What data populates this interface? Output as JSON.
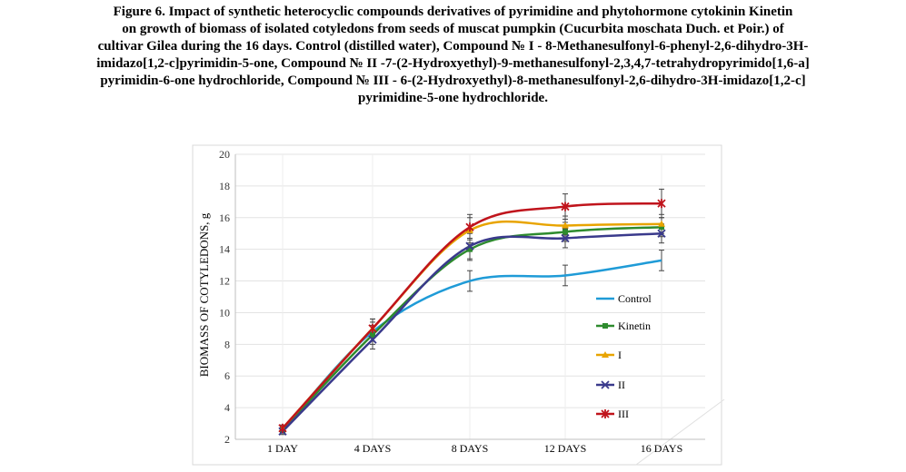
{
  "caption_lines": [
    "Figure 6. Impact of synthetic heterocyclic compounds derivatives of pyrimidine and phytohormone cytokinin Kinetin",
    "on growth of biomass of isolated cotyledons from seeds of muscat pumpkin (Cucurbita moschata Duch. et Poir.) of",
    "cultivar Gilea during the 16 days. Control (distilled water), Compound № I - 8-Methanesulfonyl-6-phenyl-2,6-dihydro-3H-",
    "imidazo[1,2-c]pyrimidin-5-one, Compound № II -7-(2-Hydroxyethyl)-9-methanesulfonyl-2,3,4,7-tetrahydropyrimido[1,6-a]",
    "pyrimidin-6-one hydrochloride, Compound № III - 6-(2-Hydroxyethyl)-8-methanesulfonyl-2,6-dihydro-3H-imidazo[1,2-c]",
    "pyrimidine-5-one hydrochloride."
  ],
  "chart_data": {
    "type": "line",
    "title": "",
    "xlabel": "",
    "ylabel": "BIOMASS OF COTYLEDONS, g",
    "categories": [
      "1 DAY",
      "4 DAYS",
      "8 DAYS",
      "12 DAYS",
      "16 DAYS"
    ],
    "ylim": [
      2,
      20
    ],
    "yticks": [
      2,
      4,
      6,
      8,
      10,
      12,
      14,
      16,
      18,
      20
    ],
    "grid": true,
    "legend_position": "right",
    "series": [
      {
        "name": "Control",
        "color": "#1f9bd7",
        "marker": "none",
        "values": [
          2.6,
          8.8,
          12.0,
          12.35,
          13.3
        ],
        "errors": [
          0.2,
          0.6,
          0.65,
          0.65,
          0.65
        ]
      },
      {
        "name": "Kinetin",
        "color": "#2e8b2e",
        "marker": "square",
        "values": [
          2.6,
          8.6,
          14.0,
          15.1,
          15.4
        ],
        "errors": [
          0.2,
          0.6,
          0.7,
          0.6,
          0.6
        ]
      },
      {
        "name": "I",
        "color": "#e8a400",
        "marker": "triangle",
        "values": [
          2.7,
          9.0,
          15.2,
          15.5,
          15.6
        ],
        "errors": [
          0.2,
          0.6,
          0.8,
          0.6,
          0.6
        ]
      },
      {
        "name": "II",
        "color": "#3a3a8c",
        "marker": "x",
        "values": [
          2.5,
          8.3,
          14.2,
          14.7,
          15.0
        ],
        "errors": [
          0.2,
          0.6,
          0.8,
          0.6,
          0.6
        ]
      },
      {
        "name": "III",
        "color": "#c0141c",
        "marker": "star",
        "values": [
          2.7,
          9.0,
          15.4,
          16.7,
          16.9
        ],
        "errors": [
          0.2,
          0.6,
          0.8,
          0.8,
          0.9
        ]
      }
    ]
  }
}
